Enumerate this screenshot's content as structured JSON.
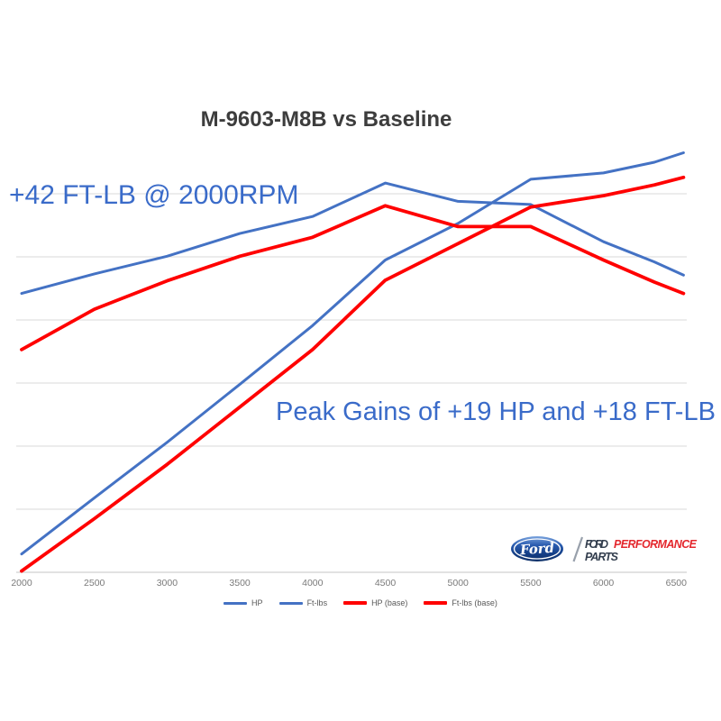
{
  "annotations": {
    "torque_gain": "+42 FT-LB @ 2000RPM",
    "peak_gains": "Peak Gains of +19 HP and +18 FT-LB",
    "color": "#3a6bc9"
  },
  "branding": {
    "oval_script": "Ford",
    "line1_dark": "FORD",
    "line1_red": "PERFORMANCE",
    "line2_dark": "PARTS",
    "oval_blue": "#1c4f9c",
    "red": "#e4282e",
    "dark": "#333e4e"
  },
  "chart_data": {
    "type": "line",
    "title": "M-9603-M8B vs Baseline",
    "xlabel": "",
    "ylabel": "",
    "x_ticks": [
      "2000",
      "2500",
      "3000",
      "3500",
      "4000",
      "4500",
      "5000",
      "5500",
      "6000",
      "6500"
    ],
    "x": [
      2000,
      2500,
      3000,
      3500,
      4000,
      4500,
      5000,
      5500,
      6000,
      6350,
      6550
    ],
    "xlim": [
      2000,
      6600
    ],
    "ylim": [
      0,
      7
    ],
    "y_axis_labels_visible": false,
    "y_unit": "relative gridline units (y axis unlabeled; 1 unit = 1 gridline ≈ 48 hp/ft-lb)",
    "grid": "horizontal",
    "grid_color": "#d9d9d9",
    "axis_color": "#c6c6c6",
    "tick_color": "#7a7a7a",
    "legend_position": "bottom",
    "series": [
      {
        "name": "HP",
        "color": "#4472c4",
        "values": [
          0.29,
          1.18,
          2.06,
          2.98,
          3.91,
          4.95,
          5.53,
          6.23,
          6.33,
          6.5,
          6.65
        ]
      },
      {
        "name": "Ft-lbs",
        "color": "#4472c4",
        "values": [
          4.42,
          4.73,
          5.01,
          5.37,
          5.64,
          6.17,
          5.88,
          5.83,
          5.24,
          4.92,
          4.71
        ]
      },
      {
        "name": "HP (base)",
        "color": "#ff0000",
        "values": [
          0.02,
          0.85,
          1.71,
          2.62,
          3.53,
          4.63,
          5.21,
          5.79,
          5.97,
          6.14,
          6.26
        ]
      },
      {
        "name": "Ft-lbs (base)",
        "color": "#ff0000",
        "values": [
          3.53,
          4.17,
          4.62,
          5.01,
          5.31,
          5.81,
          5.48,
          5.48,
          4.95,
          4.6,
          4.42
        ]
      }
    ]
  }
}
